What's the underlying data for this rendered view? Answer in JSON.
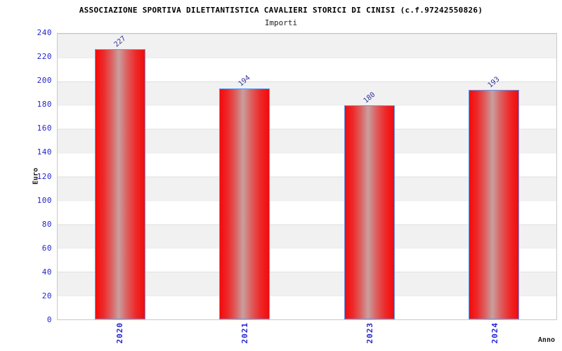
{
  "header": {
    "title": "ASSOCIAZIONE SPORTIVA DILETTANTISTICA CAVALIERI STORICI DI CINISI (c.f.97242550826)",
    "subtitle": "Importi"
  },
  "axes": {
    "y_label": "Euro",
    "x_label": "Anno"
  },
  "chart_data": {
    "type": "bar",
    "title": "ASSOCIAZIONE SPORTIVA DILETTANTISTICA CAVALIERI STORICI DI CINISI (c.f.97242550826)",
    "subtitle": "Importi",
    "categories": [
      "2020",
      "2021",
      "2023",
      "2024"
    ],
    "values": [
      227,
      194,
      180,
      193
    ],
    "xlabel": "Anno",
    "ylabel": "Euro",
    "ylim": [
      0,
      240
    ],
    "yticks": [
      0,
      20,
      40,
      60,
      80,
      100,
      120,
      140,
      160,
      180,
      200,
      220,
      240
    ],
    "grid": "horizontal-bands",
    "legend": "none",
    "value_labels_rotated": true
  },
  "colors": {
    "bar_edge_red": "#f30b0b",
    "bar_center_highlight": "#c99f9f",
    "bar_border_blue": "#5b9cf5",
    "axis_tick_blue": "#2424cf",
    "value_label_navy": "#32329b",
    "band_gray": "#f1f1f1",
    "plot_border_gray": "#c9c9c9",
    "title_black": "#000000"
  }
}
